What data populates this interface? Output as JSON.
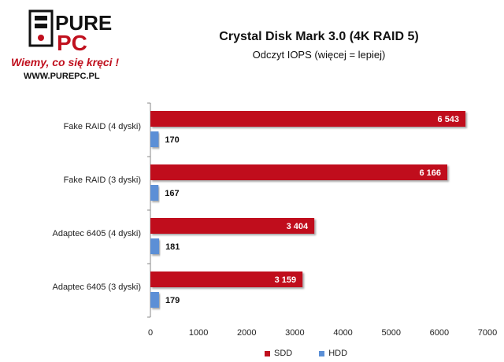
{
  "logo": {
    "brand_top": "PURE",
    "brand_bottom": "PC",
    "slogan": "Wiemy, co się kręci !",
    "site": "WWW.PUREPC.PL"
  },
  "chart_data": {
    "type": "bar",
    "orientation": "horizontal",
    "title": "Crystal Disk Mark 3.0 (4K RAID 5)",
    "subtitle": "Odczyt IOPS (więcej = lepiej)",
    "categories": [
      "Fake RAID (4 dyski)",
      "Fake RAID (3 dyski)",
      "Adaptec 6405 (4 dyski)",
      "Adaptec 6405 (3 dyski)"
    ],
    "series": [
      {
        "name": "SDD",
        "values": [
          6543,
          6166,
          3404,
          3159
        ],
        "labels": [
          "6 543",
          "6 166",
          "3 404",
          "3 159"
        ],
        "color": "#c0101e"
      },
      {
        "name": "HDD",
        "values": [
          170,
          167,
          181,
          179
        ],
        "labels": [
          "170",
          "167",
          "181",
          "179"
        ],
        "color": "#5b8fd6"
      }
    ],
    "xlim": [
      0,
      7000
    ],
    "xticks": [
      "0",
      "1000",
      "2000",
      "3000",
      "4000",
      "5000",
      "6000",
      "7000"
    ],
    "grid": false,
    "legend_position": "bottom"
  }
}
